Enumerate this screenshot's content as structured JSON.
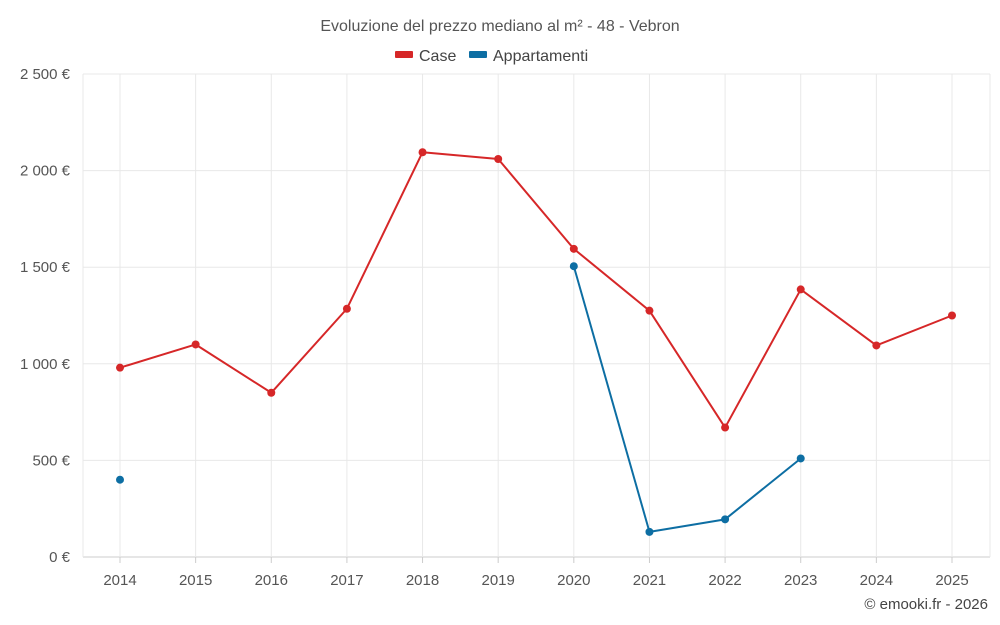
{
  "chart_data": {
    "type": "line",
    "title": "Evoluzione del prezzo mediano al m² - 48 - Vebron",
    "categories": [
      "2014",
      "2015",
      "2016",
      "2017",
      "2018",
      "2019",
      "2020",
      "2021",
      "2022",
      "2023",
      "2024",
      "2025"
    ],
    "ylim": [
      0,
      2500
    ],
    "yticks": [
      0,
      500,
      1000,
      1500,
      2000,
      2500
    ],
    "ytick_labels": [
      "0 €",
      "500 €",
      "1 000 €",
      "1 500 €",
      "2 000 €",
      "2 500 €"
    ],
    "grid": true,
    "legend_position": "top-center",
    "series": [
      {
        "name": "Case",
        "color": "#d62728",
        "values": [
          980,
          1100,
          850,
          1285,
          2095,
          2060,
          1595,
          1275,
          670,
          1385,
          1095,
          1250
        ]
      },
      {
        "name": "Appartamenti",
        "color": "#0d6ea3",
        "values": [
          400,
          null,
          null,
          null,
          null,
          null,
          1505,
          130,
          195,
          510,
          null,
          null
        ]
      }
    ]
  },
  "credit": "© emooki.fr - 2026"
}
